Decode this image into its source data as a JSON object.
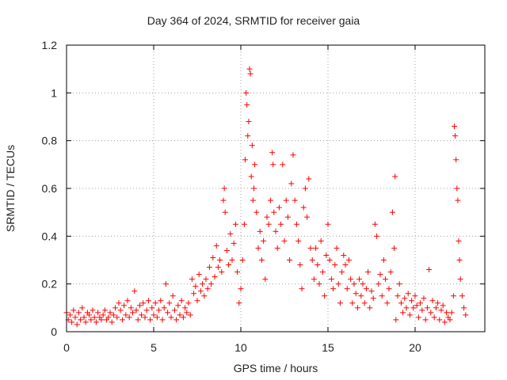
{
  "chart_data": {
    "type": "scatter",
    "title": "Day 364 of 2024, SRMTID for receiver gaia",
    "xlabel": "GPS time / hours",
    "ylabel": "SRMTID / TECUs",
    "xlim": [
      0,
      24
    ],
    "ylim": [
      0,
      1.2
    ],
    "xticks": [
      0,
      5,
      10,
      15,
      20
    ],
    "yticks": [
      0,
      0.2,
      0.4,
      0.6,
      0.8,
      1,
      1.2
    ],
    "ytick_labels": [
      "0",
      "0.2",
      "0.4",
      "0.6",
      "0.8",
      "1",
      "1.2"
    ],
    "grid": true,
    "marker": "+",
    "color": "#ff0000",
    "series": [
      {
        "name": "SRMTID",
        "points": [
          [
            0.0,
            0.08
          ],
          [
            0.1,
            0.05
          ],
          [
            0.2,
            0.07
          ],
          [
            0.3,
            0.04
          ],
          [
            0.4,
            0.09
          ],
          [
            0.5,
            0.06
          ],
          [
            0.6,
            0.03
          ],
          [
            0.7,
            0.08
          ],
          [
            0.8,
            0.05
          ],
          [
            0.9,
            0.1
          ],
          [
            1.0,
            0.06
          ],
          [
            1.1,
            0.04
          ],
          [
            1.2,
            0.08
          ],
          [
            1.3,
            0.07
          ],
          [
            1.4,
            0.05
          ],
          [
            1.5,
            0.09
          ],
          [
            1.6,
            0.06
          ],
          [
            1.7,
            0.04
          ],
          [
            1.8,
            0.08
          ],
          [
            1.9,
            0.06
          ],
          [
            2.0,
            0.05
          ],
          [
            2.1,
            0.07
          ],
          [
            2.2,
            0.09
          ],
          [
            2.3,
            0.05
          ],
          [
            2.4,
            0.06
          ],
          [
            2.5,
            0.08
          ],
          [
            2.6,
            0.04
          ],
          [
            2.7,
            0.07
          ],
          [
            2.8,
            0.1
          ],
          [
            2.9,
            0.06
          ],
          [
            3.0,
            0.12
          ],
          [
            3.1,
            0.09
          ],
          [
            3.2,
            0.05
          ],
          [
            3.3,
            0.11
          ],
          [
            3.4,
            0.07
          ],
          [
            3.5,
            0.13
          ],
          [
            3.6,
            0.06
          ],
          [
            3.7,
            0.1
          ],
          [
            3.8,
            0.08
          ],
          [
            3.9,
            0.17
          ],
          [
            4.0,
            0.09
          ],
          [
            4.1,
            0.05
          ],
          [
            4.2,
            0.11
          ],
          [
            4.3,
            0.07
          ],
          [
            4.4,
            0.12
          ],
          [
            4.5,
            0.06
          ],
          [
            4.6,
            0.09
          ],
          [
            4.7,
            0.13
          ],
          [
            4.8,
            0.05
          ],
          [
            4.9,
            0.1
          ],
          [
            5.0,
            0.07
          ],
          [
            5.1,
            0.12
          ],
          [
            5.2,
            0.06
          ],
          [
            5.3,
            0.09
          ],
          [
            5.4,
            0.13
          ],
          [
            5.5,
            0.05
          ],
          [
            5.6,
            0.1
          ],
          [
            5.7,
            0.2
          ],
          [
            5.8,
            0.08
          ],
          [
            5.9,
            0.12
          ],
          [
            6.0,
            0.06
          ],
          [
            6.1,
            0.15
          ],
          [
            6.2,
            0.09
          ],
          [
            6.3,
            0.05
          ],
          [
            6.4,
            0.11
          ],
          [
            6.5,
            0.07
          ],
          [
            6.6,
            0.13
          ],
          [
            6.7,
            0.06
          ],
          [
            6.8,
            0.1
          ],
          [
            6.9,
            0.08
          ],
          [
            7.0,
            0.12
          ],
          [
            7.1,
            0.07
          ],
          [
            7.2,
            0.22
          ],
          [
            7.3,
            0.16
          ],
          [
            7.4,
            0.19
          ],
          [
            7.5,
            0.13
          ],
          [
            7.6,
            0.24
          ],
          [
            7.7,
            0.17
          ],
          [
            7.8,
            0.2
          ],
          [
            7.9,
            0.15
          ],
          [
            8.0,
            0.22
          ],
          [
            8.1,
            0.18
          ],
          [
            8.2,
            0.27
          ],
          [
            8.3,
            0.2
          ],
          [
            8.4,
            0.31
          ],
          [
            8.5,
            0.23
          ],
          [
            8.6,
            0.36
          ],
          [
            8.7,
            0.27
          ],
          [
            8.8,
            0.3
          ],
          [
            8.9,
            0.25
          ],
          [
            9.0,
            0.55
          ],
          [
            9.05,
            0.6
          ],
          [
            9.1,
            0.5
          ],
          [
            9.2,
            0.34
          ],
          [
            9.3,
            0.28
          ],
          [
            9.4,
            0.41
          ],
          [
            9.5,
            0.3
          ],
          [
            9.6,
            0.37
          ],
          [
            9.7,
            0.45
          ],
          [
            9.8,
            0.25
          ],
          [
            9.9,
            0.12
          ],
          [
            10.0,
            0.18
          ],
          [
            10.1,
            0.3
          ],
          [
            10.2,
            0.45
          ],
          [
            10.25,
            0.72
          ],
          [
            10.3,
            1.0
          ],
          [
            10.35,
            0.95
          ],
          [
            10.4,
            0.82
          ],
          [
            10.45,
            0.88
          ],
          [
            10.5,
            1.1
          ],
          [
            10.55,
            1.08
          ],
          [
            10.6,
            0.65
          ],
          [
            10.65,
            0.78
          ],
          [
            10.7,
            0.55
          ],
          [
            10.75,
            0.6
          ],
          [
            10.8,
            0.7
          ],
          [
            10.9,
            0.5
          ],
          [
            11.0,
            0.35
          ],
          [
            11.1,
            0.42
          ],
          [
            11.2,
            0.3
          ],
          [
            11.3,
            0.38
          ],
          [
            11.4,
            0.22
          ],
          [
            11.5,
            0.48
          ],
          [
            11.6,
            0.45
          ],
          [
            11.7,
            0.55
          ],
          [
            11.8,
            0.75
          ],
          [
            11.85,
            0.7
          ],
          [
            11.9,
            0.5
          ],
          [
            12.0,
            0.42
          ],
          [
            12.1,
            0.35
          ],
          [
            12.2,
            0.52
          ],
          [
            12.3,
            0.45
          ],
          [
            12.4,
            0.7
          ],
          [
            12.5,
            0.38
          ],
          [
            12.6,
            0.55
          ],
          [
            12.7,
            0.48
          ],
          [
            12.8,
            0.3
          ],
          [
            12.9,
            0.62
          ],
          [
            13.0,
            0.74
          ],
          [
            13.1,
            0.55
          ],
          [
            13.2,
            0.45
          ],
          [
            13.3,
            0.38
          ],
          [
            13.4,
            0.28
          ],
          [
            13.5,
            0.18
          ],
          [
            13.6,
            0.52
          ],
          [
            13.7,
            0.6
          ],
          [
            13.8,
            0.48
          ],
          [
            13.9,
            0.64
          ],
          [
            14.0,
            0.35
          ],
          [
            14.1,
            0.3
          ],
          [
            14.2,
            0.22
          ],
          [
            14.3,
            0.35
          ],
          [
            14.4,
            0.28
          ],
          [
            14.5,
            0.2
          ],
          [
            14.6,
            0.38
          ],
          [
            14.7,
            0.25
          ],
          [
            14.8,
            0.15
          ],
          [
            14.9,
            0.32
          ],
          [
            15.0,
            0.45
          ],
          [
            15.1,
            0.3
          ],
          [
            15.2,
            0.22
          ],
          [
            15.3,
            0.18
          ],
          [
            15.4,
            0.28
          ],
          [
            15.5,
            0.35
          ],
          [
            15.6,
            0.2
          ],
          [
            15.7,
            0.12
          ],
          [
            15.8,
            0.25
          ],
          [
            15.9,
            0.32
          ],
          [
            16.0,
            0.28
          ],
          [
            16.1,
            0.18
          ],
          [
            16.2,
            0.3
          ],
          [
            16.3,
            0.22
          ],
          [
            16.4,
            0.12
          ],
          [
            16.5,
            0.2
          ],
          [
            16.6,
            0.16
          ],
          [
            16.7,
            0.1
          ],
          [
            16.8,
            0.22
          ],
          [
            16.9,
            0.15
          ],
          [
            17.0,
            0.2
          ],
          [
            17.1,
            0.12
          ],
          [
            17.2,
            0.18
          ],
          [
            17.3,
            0.25
          ],
          [
            17.4,
            0.1
          ],
          [
            17.5,
            0.17
          ],
          [
            17.6,
            0.14
          ],
          [
            17.7,
            0.45
          ],
          [
            17.8,
            0.4
          ],
          [
            17.9,
            0.2
          ],
          [
            18.0,
            0.24
          ],
          [
            18.1,
            0.15
          ],
          [
            18.2,
            0.3
          ],
          [
            18.3,
            0.22
          ],
          [
            18.4,
            0.12
          ],
          [
            18.5,
            0.18
          ],
          [
            18.6,
            0.25
          ],
          [
            18.7,
            0.5
          ],
          [
            18.8,
            0.35
          ],
          [
            18.85,
            0.65
          ],
          [
            18.9,
            0.05
          ],
          [
            19.0,
            0.15
          ],
          [
            19.1,
            0.2
          ],
          [
            19.2,
            0.12
          ],
          [
            19.3,
            0.08
          ],
          [
            19.4,
            0.14
          ],
          [
            19.5,
            0.1
          ],
          [
            19.6,
            0.16
          ],
          [
            19.7,
            0.07
          ],
          [
            19.8,
            0.13
          ],
          [
            19.9,
            0.1
          ],
          [
            20.0,
            0.15
          ],
          [
            20.1,
            0.11
          ],
          [
            20.2,
            0.06
          ],
          [
            20.3,
            0.12
          ],
          [
            20.4,
            0.09
          ],
          [
            20.5,
            0.14
          ],
          [
            20.6,
            0.05
          ],
          [
            20.7,
            0.1
          ],
          [
            20.8,
            0.26
          ],
          [
            20.9,
            0.08
          ],
          [
            21.0,
            0.13
          ],
          [
            21.1,
            0.06
          ],
          [
            21.2,
            0.1
          ],
          [
            21.3,
            0.12
          ],
          [
            21.4,
            0.05
          ],
          [
            21.5,
            0.09
          ],
          [
            21.6,
            0.11
          ],
          [
            21.7,
            0.04
          ],
          [
            21.8,
            0.08
          ],
          [
            21.9,
            0.06
          ],
          [
            22.0,
            0.05
          ],
          [
            22.1,
            0.08
          ],
          [
            22.2,
            0.15
          ],
          [
            22.25,
            0.86
          ],
          [
            22.3,
            0.82
          ],
          [
            22.35,
            0.72
          ],
          [
            22.4,
            0.6
          ],
          [
            22.45,
            0.55
          ],
          [
            22.5,
            0.38
          ],
          [
            22.55,
            0.3
          ],
          [
            22.6,
            0.22
          ],
          [
            22.7,
            0.15
          ],
          [
            22.8,
            0.1
          ],
          [
            22.9,
            0.07
          ]
        ]
      }
    ]
  }
}
